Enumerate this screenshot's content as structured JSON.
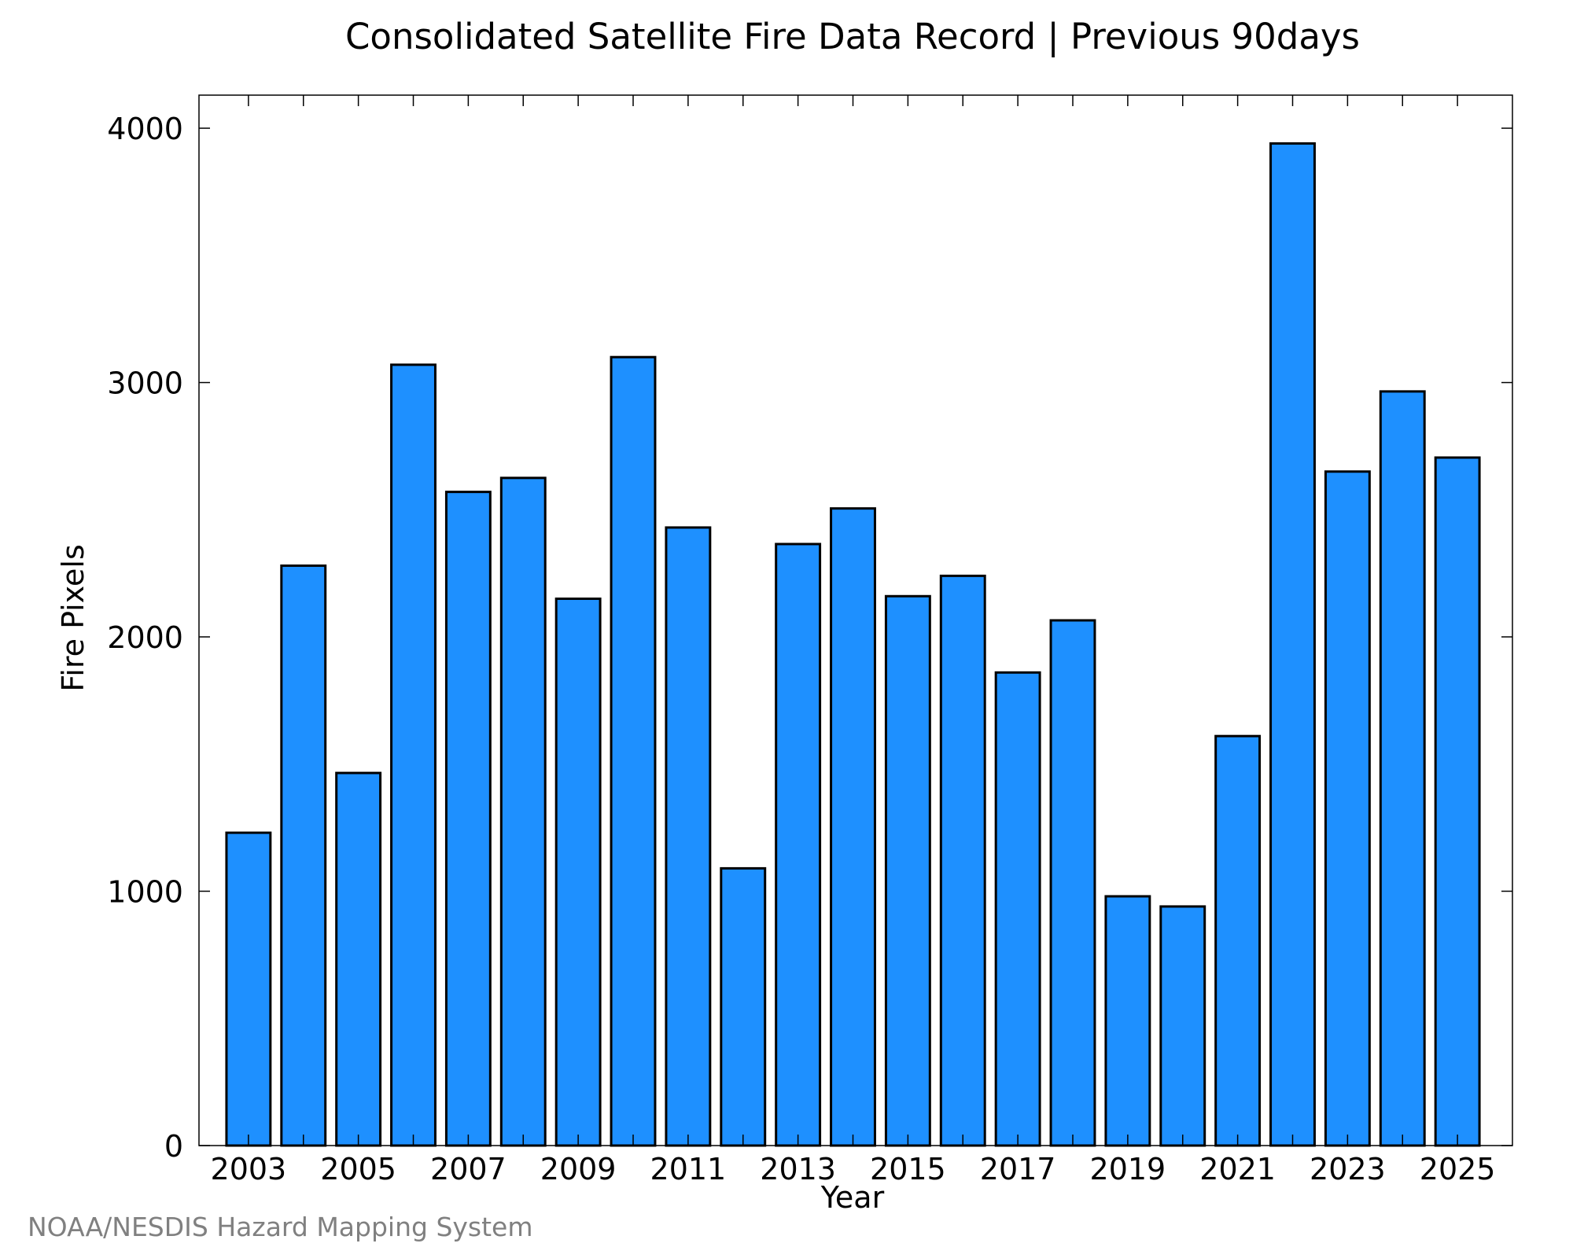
{
  "chart_data": {
    "type": "bar",
    "title": "Consolidated Satellite Fire Data Record | Previous 90days",
    "xlabel": "Year",
    "ylabel": "Fire Pixels",
    "x": [
      2003,
      2004,
      2005,
      2006,
      2007,
      2008,
      2009,
      2010,
      2011,
      2012,
      2013,
      2014,
      2015,
      2016,
      2017,
      2018,
      2019,
      2020,
      2021,
      2022,
      2023,
      2024,
      2025
    ],
    "values": [
      1230,
      2280,
      1465,
      3070,
      2570,
      2625,
      2150,
      3100,
      2430,
      1090,
      2365,
      2505,
      2160,
      2240,
      1860,
      2065,
      980,
      940,
      1610,
      3940,
      2650,
      2965,
      2705
    ],
    "ylim": [
      0,
      4130
    ],
    "xlim": [
      2002.1,
      2026
    ],
    "y_ticks": [
      "0",
      "1000",
      "2000",
      "3000",
      "4000"
    ],
    "x_ticks": [
      "2003",
      "2005",
      "2007",
      "2009",
      "2011",
      "2013",
      "2015",
      "2017",
      "2019",
      "2021",
      "2023",
      "2025"
    ],
    "bar_color": "#1e90ff",
    "grid": false
  },
  "footer": {
    "credit": "NOAA/NESDIS Hazard Mapping System"
  }
}
